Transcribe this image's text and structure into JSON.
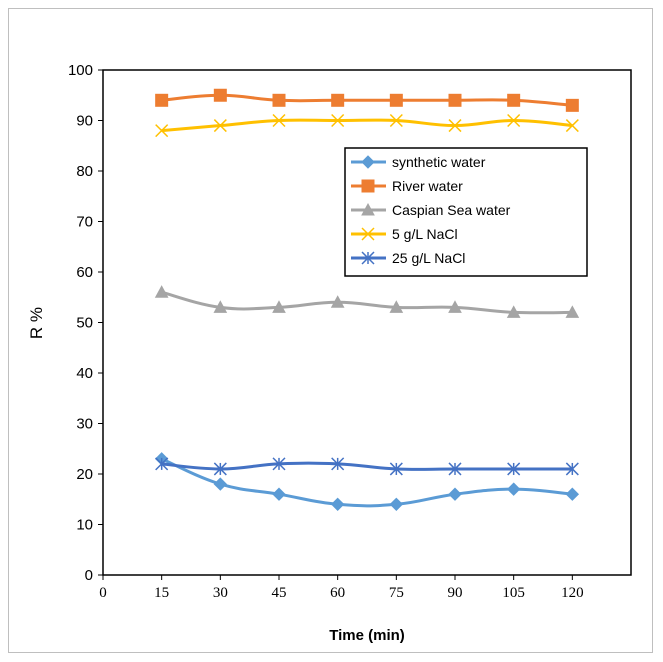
{
  "chart_data": {
    "type": "line",
    "title": "",
    "xlabel": "Time (min)",
    "ylabel": "R %",
    "xlim": [
      0,
      135
    ],
    "ylim": [
      0,
      100
    ],
    "x_ticks": [
      0,
      15,
      30,
      45,
      60,
      75,
      90,
      105,
      120
    ],
    "y_ticks": [
      0,
      10,
      20,
      30,
      40,
      50,
      60,
      70,
      80,
      90,
      100
    ],
    "x": [
      15,
      30,
      45,
      60,
      75,
      90,
      105,
      120
    ],
    "grid": false,
    "legend_position": "right",
    "series": [
      {
        "name": "synthetic water",
        "color": "#5b9bd5",
        "marker": "diamond",
        "values": [
          23,
          18,
          16,
          14,
          14,
          16,
          17,
          16
        ]
      },
      {
        "name": "River water",
        "color": "#ed7d31",
        "marker": "square",
        "values": [
          94,
          95,
          94,
          94,
          94,
          94,
          94,
          93
        ]
      },
      {
        "name": "Caspian Sea water",
        "color": "#a5a5a5",
        "marker": "triangle",
        "values": [
          56,
          53,
          53,
          54,
          53,
          53,
          52,
          52
        ]
      },
      {
        "name": "5 g/L NaCl",
        "color": "#ffc000",
        "marker": "x",
        "values": [
          88,
          89,
          90,
          90,
          90,
          89,
          90,
          89
        ]
      },
      {
        "name": "25 g/L NaCl",
        "color": "#4472c4",
        "marker": "star",
        "values": [
          22,
          21,
          22,
          22,
          21,
          21,
          21,
          21
        ]
      }
    ]
  }
}
